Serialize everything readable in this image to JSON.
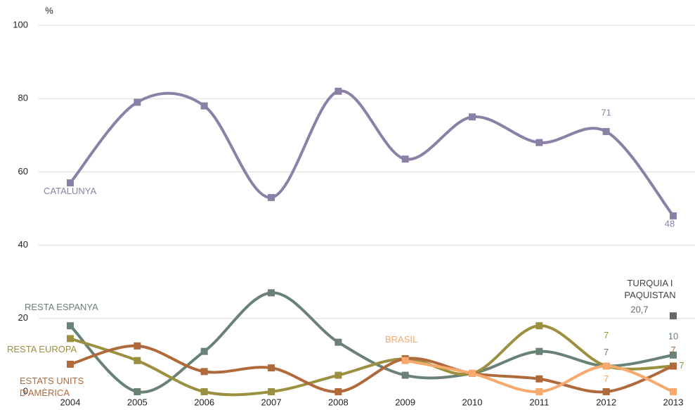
{
  "chart_data": {
    "type": "line",
    "y_label": "%",
    "categories": [
      "2004",
      "2005",
      "2006",
      "2007",
      "2008",
      "2009",
      "2010",
      "2011",
      "2012",
      "2013"
    ],
    "ylim": [
      0,
      100
    ],
    "yticks": [
      0,
      20,
      40,
      60,
      80,
      100
    ],
    "grid": true,
    "smooth": true,
    "series": [
      {
        "name": "CATALUNYA",
        "color": "#8b80a6",
        "values": [
          57,
          79,
          78,
          53,
          82,
          63.5,
          75,
          68,
          71,
          48
        ],
        "value_labels": [
          null,
          null,
          null,
          null,
          null,
          null,
          null,
          null,
          "71",
          "48"
        ]
      },
      {
        "name": "RESTA ESPANYA",
        "color": "#6a8176",
        "values": [
          18,
          0,
          11,
          27,
          13.5,
          4.5,
          5,
          11,
          7,
          10
        ],
        "value_labels": [
          null,
          null,
          null,
          null,
          null,
          null,
          null,
          null,
          "7",
          "10"
        ]
      },
      {
        "name": "RESTA EUROPA",
        "color": "#9a9040",
        "values": [
          14.5,
          8.5,
          0,
          0,
          4.5,
          9,
          5,
          18,
          7,
          7
        ],
        "value_labels": [
          null,
          null,
          null,
          null,
          null,
          null,
          null,
          null,
          "7",
          "7"
        ]
      },
      {
        "name": "ESTATS UNITS D'AMÈRICA",
        "color": "#b0693a",
        "values": [
          7.5,
          12.5,
          5.5,
          6.5,
          0,
          9,
          5,
          3.5,
          0,
          7
        ],
        "value_labels": [
          null,
          null,
          null,
          null,
          null,
          null,
          null,
          null,
          null,
          "7"
        ]
      },
      {
        "name": "BRASIL",
        "color": "#f8a96b",
        "values": [
          null,
          null,
          null,
          null,
          null,
          8.5,
          5,
          0,
          7,
          0
        ],
        "value_labels": [
          null,
          null,
          null,
          null,
          null,
          null,
          null,
          null,
          "7",
          null
        ]
      },
      {
        "name": "TURQUIA I PAQUISTAN",
        "color": "#666666",
        "values": [
          null,
          null,
          null,
          null,
          null,
          null,
          null,
          null,
          null,
          20.7
        ],
        "value_labels": [
          null,
          null,
          null,
          null,
          null,
          null,
          null,
          null,
          null,
          "20,7"
        ]
      }
    ]
  }
}
